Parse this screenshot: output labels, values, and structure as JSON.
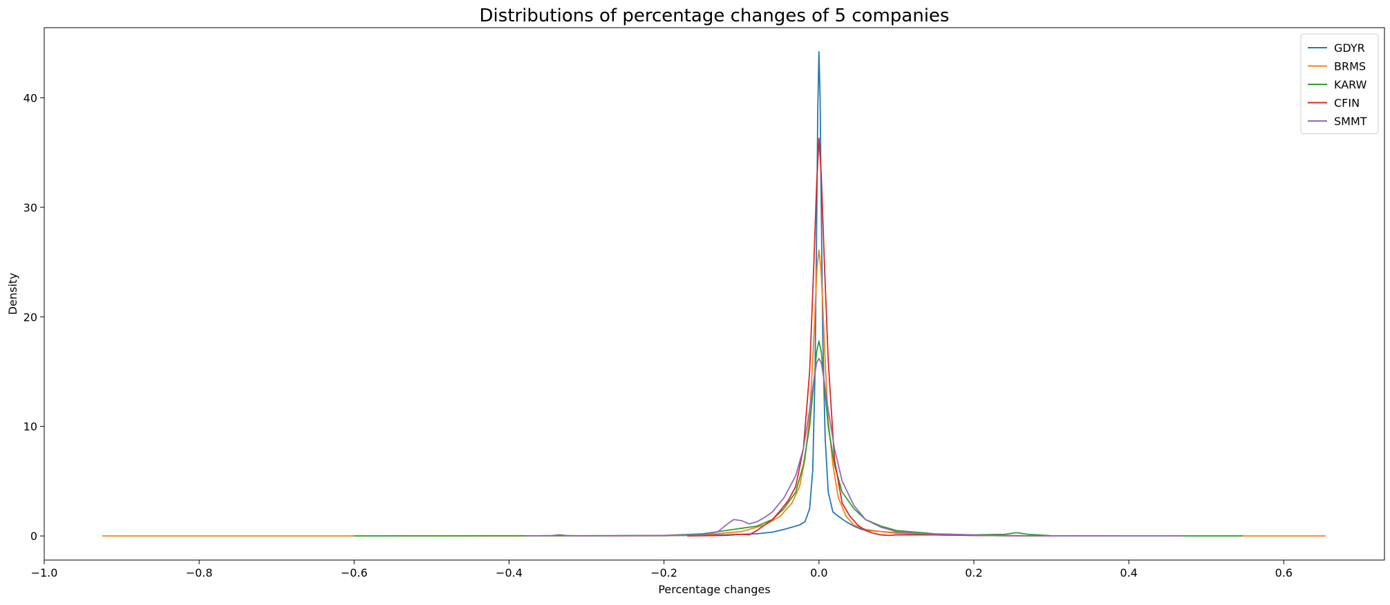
{
  "chart_data": {
    "type": "line",
    "title": "Distributions of percentage changes of 5 companies",
    "xlabel": "Percentage changes",
    "ylabel": "Density",
    "xlim": [
      -1.0,
      0.73
    ],
    "ylim": [
      -2.2,
      46.4
    ],
    "xticks": [
      -1.0,
      -0.8,
      -0.6,
      -0.4,
      -0.2,
      0.0,
      0.2,
      0.4,
      0.6
    ],
    "xtick_labels": [
      "−1.0",
      "−0.8",
      "−0.6",
      "−0.4",
      "−0.2",
      "0.0",
      "0.2",
      "0.4",
      "0.6"
    ],
    "yticks": [
      0,
      10,
      20,
      30,
      40
    ],
    "ytick_labels": [
      "0",
      "10",
      "20",
      "30",
      "40"
    ],
    "grid": false,
    "legend_position": "top-right",
    "series": [
      {
        "name": "GDYR",
        "color": "#1f77b4",
        "points": [
          [
            -0.38,
            0.0
          ],
          [
            -0.345,
            0.03
          ],
          [
            -0.335,
            0.1
          ],
          [
            -0.325,
            0.03
          ],
          [
            -0.3,
            0.0
          ],
          [
            -0.2,
            0.02
          ],
          [
            -0.12,
            0.1
          ],
          [
            -0.08,
            0.2
          ],
          [
            -0.06,
            0.35
          ],
          [
            -0.045,
            0.6
          ],
          [
            -0.035,
            0.8
          ],
          [
            -0.025,
            1.0
          ],
          [
            -0.018,
            1.3
          ],
          [
            -0.012,
            2.5
          ],
          [
            -0.008,
            6.0
          ],
          [
            -0.005,
            15.0
          ],
          [
            -0.003,
            28.0
          ],
          [
            -0.0015,
            39.0
          ],
          [
            0.0,
            44.2
          ],
          [
            0.0015,
            40.0
          ],
          [
            0.003,
            30.0
          ],
          [
            0.005,
            18.0
          ],
          [
            0.008,
            9.0
          ],
          [
            0.012,
            4.0
          ],
          [
            0.018,
            2.2
          ],
          [
            0.025,
            1.8
          ],
          [
            0.035,
            1.3
          ],
          [
            0.045,
            0.9
          ],
          [
            0.055,
            0.6
          ],
          [
            0.065,
            0.5
          ],
          [
            0.08,
            0.4
          ],
          [
            0.1,
            0.3
          ],
          [
            0.15,
            0.1
          ],
          [
            0.2,
            0.05
          ],
          [
            0.25,
            0.02
          ],
          [
            0.3,
            0.0
          ],
          [
            0.47,
            0.0
          ]
        ]
      },
      {
        "name": "BRMS",
        "color": "#ff7f0e",
        "points": [
          [
            -0.925,
            0.0
          ],
          [
            -0.4,
            0.0
          ],
          [
            -0.2,
            0.02
          ],
          [
            -0.15,
            0.1
          ],
          [
            -0.1,
            0.4
          ],
          [
            -0.07,
            1.0
          ],
          [
            -0.05,
            1.8
          ],
          [
            -0.035,
            3.0
          ],
          [
            -0.025,
            4.5
          ],
          [
            -0.018,
            7.0
          ],
          [
            -0.012,
            11.0
          ],
          [
            -0.008,
            16.0
          ],
          [
            -0.005,
            20.5
          ],
          [
            -0.0025,
            24.5
          ],
          [
            0.0,
            26.1
          ],
          [
            0.0025,
            24.5
          ],
          [
            0.005,
            21.0
          ],
          [
            0.008,
            16.0
          ],
          [
            0.012,
            10.5
          ],
          [
            0.018,
            6.5
          ],
          [
            0.025,
            3.5
          ],
          [
            0.035,
            1.8
          ],
          [
            0.045,
            1.0
          ],
          [
            0.06,
            0.6
          ],
          [
            0.08,
            0.4
          ],
          [
            0.1,
            0.25
          ],
          [
            0.15,
            0.15
          ],
          [
            0.2,
            0.05
          ],
          [
            0.3,
            0.0
          ],
          [
            0.654,
            0.0
          ]
        ]
      },
      {
        "name": "KARW",
        "color": "#2ca02c",
        "points": [
          [
            -0.6,
            0.0
          ],
          [
            -0.3,
            0.02
          ],
          [
            -0.2,
            0.05
          ],
          [
            -0.15,
            0.2
          ],
          [
            -0.12,
            0.5
          ],
          [
            -0.1,
            0.7
          ],
          [
            -0.08,
            0.9
          ],
          [
            -0.06,
            1.5
          ],
          [
            -0.045,
            2.5
          ],
          [
            -0.03,
            4.0
          ],
          [
            -0.02,
            6.5
          ],
          [
            -0.012,
            10.0
          ],
          [
            -0.006,
            14.5
          ],
          [
            -0.003,
            16.8
          ],
          [
            0.0,
            17.8
          ],
          [
            0.003,
            16.8
          ],
          [
            0.006,
            14.5
          ],
          [
            0.012,
            10.0
          ],
          [
            0.02,
            6.5
          ],
          [
            0.03,
            4.0
          ],
          [
            0.045,
            2.5
          ],
          [
            0.06,
            1.5
          ],
          [
            0.08,
            0.9
          ],
          [
            0.1,
            0.5
          ],
          [
            0.15,
            0.2
          ],
          [
            0.2,
            0.1
          ],
          [
            0.24,
            0.15
          ],
          [
            0.255,
            0.3
          ],
          [
            0.27,
            0.15
          ],
          [
            0.3,
            0.02
          ],
          [
            0.4,
            0.0
          ],
          [
            0.547,
            0.0
          ]
        ]
      },
      {
        "name": "CFIN",
        "color": "#d62728",
        "points": [
          [
            -0.17,
            0.0
          ],
          [
            -0.12,
            0.05
          ],
          [
            -0.1,
            0.15
          ],
          [
            -0.09,
            0.1
          ],
          [
            -0.08,
            0.5
          ],
          [
            -0.07,
            1.0
          ],
          [
            -0.06,
            1.5
          ],
          [
            -0.05,
            2.3
          ],
          [
            -0.04,
            3.2
          ],
          [
            -0.03,
            4.5
          ],
          [
            -0.02,
            8.0
          ],
          [
            -0.012,
            15.0
          ],
          [
            -0.007,
            24.0
          ],
          [
            -0.003,
            32.0
          ],
          [
            0.0,
            36.3
          ],
          [
            0.003,
            33.0
          ],
          [
            0.007,
            25.0
          ],
          [
            0.012,
            16.0
          ],
          [
            0.02,
            7.0
          ],
          [
            0.03,
            3.0
          ],
          [
            0.04,
            1.8
          ],
          [
            0.05,
            1.0
          ],
          [
            0.06,
            0.5
          ],
          [
            0.07,
            0.25
          ],
          [
            0.08,
            0.1
          ],
          [
            0.09,
            0.05
          ],
          [
            0.1,
            0.1
          ],
          [
            0.15,
            0.1
          ],
          [
            0.2,
            0.05
          ],
          [
            0.25,
            0.02
          ],
          [
            0.3,
            0.0
          ]
        ]
      },
      {
        "name": "SMMT",
        "color": "#9467bd",
        "points": [
          [
            -0.38,
            0.0
          ],
          [
            -0.345,
            0.03
          ],
          [
            -0.335,
            0.1
          ],
          [
            -0.325,
            0.03
          ],
          [
            -0.3,
            0.0
          ],
          [
            -0.2,
            0.05
          ],
          [
            -0.15,
            0.1
          ],
          [
            -0.13,
            0.4
          ],
          [
            -0.12,
            1.0
          ],
          [
            -0.11,
            1.5
          ],
          [
            -0.1,
            1.4
          ],
          [
            -0.09,
            1.1
          ],
          [
            -0.08,
            1.3
          ],
          [
            -0.07,
            1.7
          ],
          [
            -0.06,
            2.2
          ],
          [
            -0.045,
            3.5
          ],
          [
            -0.03,
            5.5
          ],
          [
            -0.02,
            8.0
          ],
          [
            -0.012,
            11.5
          ],
          [
            -0.006,
            14.5
          ],
          [
            -0.003,
            15.8
          ],
          [
            0.0,
            16.2
          ],
          [
            0.003,
            15.8
          ],
          [
            0.006,
            14.5
          ],
          [
            0.012,
            11.5
          ],
          [
            0.02,
            8.0
          ],
          [
            0.03,
            5.0
          ],
          [
            0.045,
            2.8
          ],
          [
            0.06,
            1.5
          ],
          [
            0.08,
            0.8
          ],
          [
            0.1,
            0.4
          ],
          [
            0.13,
            0.2
          ],
          [
            0.17,
            0.15
          ],
          [
            0.22,
            0.05
          ],
          [
            0.3,
            0.0
          ],
          [
            0.47,
            0.0
          ]
        ]
      }
    ]
  }
}
